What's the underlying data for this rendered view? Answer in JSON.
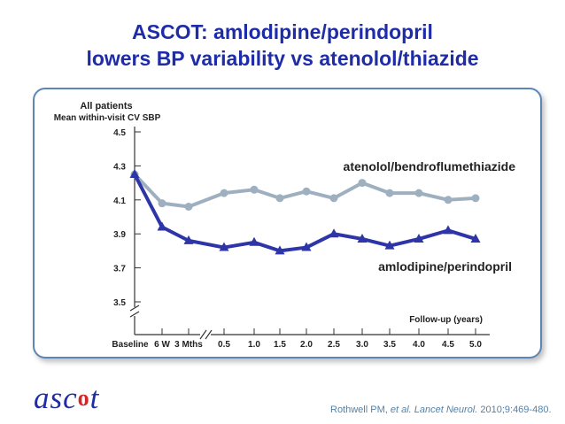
{
  "slide": {
    "title_line1": "ASCOT: amlodipine/perindopril",
    "title_line2": "lowers BP variability vs atenolol/thiazide",
    "logo_text": "ascot",
    "citation_prefix": "Rothwell PM, ",
    "citation_italic": "et al. Lancet Neurol.",
    "citation_suffix": " 2010;9:469-480."
  },
  "chart_data": {
    "type": "line",
    "title": "All patients",
    "ylabel": "Mean within-visit CV SBP",
    "xlabel": "Follow-up (years)",
    "categories": [
      "Baseline",
      "6 W",
      "3 Mths",
      "0.5",
      "1.0",
      "1.5",
      "2.0",
      "2.5",
      "3.0",
      "3.5",
      "4.0",
      "4.5",
      "5.0"
    ],
    "yticks": [
      "4.5",
      "4.3",
      "4.1",
      "3.9",
      "3.7",
      "3.5"
    ],
    "ylim": [
      3.5,
      4.5
    ],
    "axis_breaks": [
      "y",
      "x"
    ],
    "series": [
      {
        "name": "atenolol/bendroflumethiazide",
        "color": "#9eb0c0",
        "marker": "circle",
        "values": [
          4.25,
          4.08,
          4.06,
          4.14,
          4.16,
          4.11,
          4.15,
          4.11,
          4.2,
          4.14,
          4.14,
          4.1,
          4.11
        ]
      },
      {
        "name": "amlodipine/perindopril",
        "color": "#2e35a8",
        "marker": "triangle",
        "values": [
          4.25,
          3.94,
          3.86,
          3.82,
          3.85,
          3.8,
          3.82,
          3.9,
          3.87,
          3.83,
          3.87,
          3.92,
          3.87
        ]
      }
    ]
  }
}
